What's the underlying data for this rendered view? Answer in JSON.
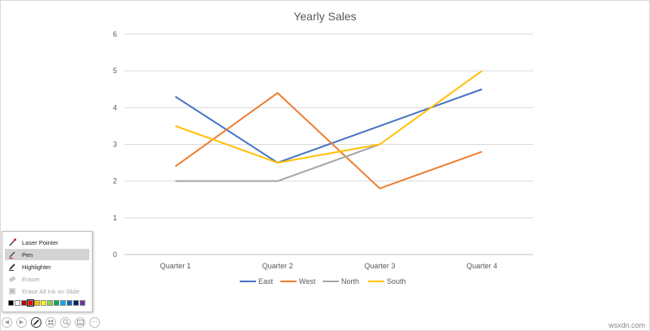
{
  "chart_data": {
    "type": "line",
    "title": "Yearly Sales",
    "categories": [
      "Quarter 1",
      "Quarter 2",
      "Quarter 3",
      "Quarter 4"
    ],
    "ylim": [
      0,
      6
    ],
    "yticks": [
      0,
      1,
      2,
      3,
      4,
      5,
      6
    ],
    "grid": true,
    "legend_position": "bottom",
    "series": [
      {
        "name": "East",
        "color": "#4472c4",
        "values": [
          4.3,
          2.5,
          3.5,
          4.5
        ]
      },
      {
        "name": "West",
        "color": "#ed7d31",
        "values": [
          2.4,
          4.4,
          1.8,
          2.8
        ]
      },
      {
        "name": "North",
        "color": "#a5a5a5",
        "values": [
          2.0,
          2.0,
          3.0,
          null
        ]
      },
      {
        "name": "South",
        "color": "#ffc000",
        "values": [
          3.5,
          2.5,
          3.0,
          5.0
        ]
      }
    ]
  },
  "pen_menu": {
    "items": [
      {
        "label": "Laser Pointer",
        "icon": "laser-pointer-icon",
        "state": "normal"
      },
      {
        "label": "Pen",
        "icon": "pen-icon",
        "state": "selected"
      },
      {
        "label": "Highlighter",
        "icon": "highlighter-icon",
        "state": "normal"
      },
      {
        "label": "Eraser",
        "icon": "eraser-icon",
        "state": "disabled"
      },
      {
        "label": "Erase All Ink on Slide",
        "icon": "erase-all-icon",
        "state": "disabled"
      }
    ],
    "colors": [
      "#000000",
      "#ffffff",
      "#c00000",
      "#ff0000",
      "#ffc000",
      "#ffff00",
      "#92d050",
      "#00b050",
      "#00b0f0",
      "#0070c0",
      "#002060",
      "#7030a0"
    ],
    "selected_color_index": 3
  },
  "controls": {
    "buttons": [
      "previous-icon",
      "next-icon",
      "pen-icon",
      "see-all-slides-icon",
      "zoom-icon",
      "subtitles-icon",
      "more-options-icon"
    ],
    "active": "pen-icon"
  },
  "watermark": "wsxdn.com"
}
